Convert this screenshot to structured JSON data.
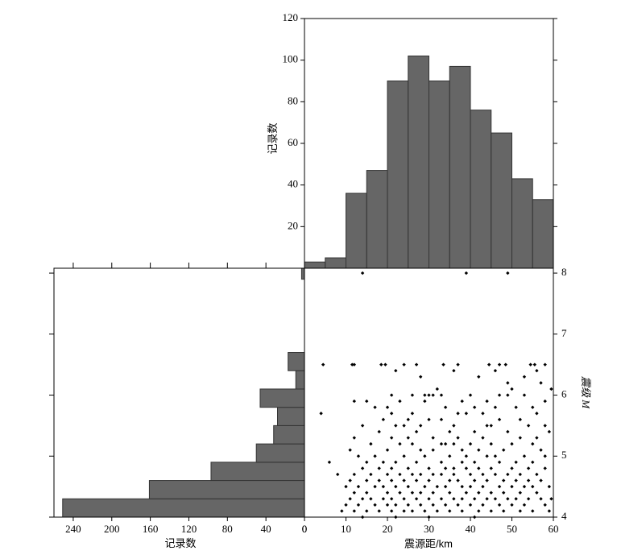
{
  "chart_data": [
    {
      "type": "histogram",
      "ylabel": "记录数",
      "bins": [
        0,
        5,
        10,
        15,
        20,
        25,
        30,
        35,
        40,
        45,
        50,
        55,
        60
      ],
      "counts": [
        3,
        5,
        36,
        47,
        90,
        102,
        90,
        97,
        76,
        65,
        43,
        33
      ],
      "color": "#666666",
      "xlim": [
        0,
        60
      ],
      "ylim": [
        0,
        120
      ],
      "yticks": [
        20,
        40,
        60,
        80,
        100,
        120
      ]
    },
    {
      "type": "histogram",
      "orientation": "horizontal",
      "x_inverted": true,
      "xlabel": "记录数",
      "bins": [
        4,
        4.3,
        4.6,
        4.9,
        5.2,
        5.5,
        5.8,
        6.1,
        6.4,
        6.7,
        7,
        7.3,
        7.6,
        7.9,
        8.2
      ],
      "counts": [
        251,
        161,
        97,
        50,
        32,
        28,
        46,
        9,
        17,
        0,
        0,
        0,
        0,
        3
      ],
      "color": "#666666",
      "xlim": [
        0,
        260
      ],
      "xticks": [
        240,
        200,
        160,
        120,
        80,
        40,
        0
      ],
      "ylim": [
        4,
        8.08
      ],
      "yticks": [
        4,
        5,
        6,
        7,
        8
      ]
    },
    {
      "type": "scatter",
      "xlabel": "震源距/km",
      "ylabel": "震级 M",
      "color": "#000000",
      "xlim": [
        0,
        60
      ],
      "ylim": [
        4,
        8.08
      ],
      "xticks": [
        0,
        10,
        20,
        30,
        40,
        50,
        60
      ],
      "yticks": [
        4,
        5,
        6,
        7,
        8
      ],
      "x": [
        14,
        39,
        49,
        4.5,
        11.5,
        12,
        18.5,
        19.5,
        24,
        27,
        33.5,
        37,
        44.5,
        47,
        48.5,
        54.5,
        55.5,
        58,
        22,
        36,
        46,
        56,
        28,
        42,
        53,
        49,
        57,
        32,
        50,
        59.5,
        21,
        26,
        29,
        30,
        31,
        33,
        40,
        47,
        49,
        53,
        12,
        15,
        23,
        29,
        38,
        44,
        58,
        17,
        20,
        34,
        41,
        46,
        51,
        55,
        4,
        21,
        26,
        37,
        39,
        43,
        56,
        19,
        25,
        30,
        33,
        47,
        52,
        14,
        22,
        24,
        28,
        36,
        44,
        45,
        54,
        58,
        18,
        27,
        35,
        41,
        49,
        59,
        12,
        21,
        25,
        31,
        37,
        43,
        52,
        56,
        16,
        23,
        26,
        33,
        34,
        36,
        40,
        45,
        50,
        55,
        11,
        20,
        28,
        31,
        38,
        42,
        48,
        57,
        13,
        17,
        24,
        29,
        35,
        39,
        44,
        46,
        53,
        58,
        6,
        15,
        19,
        22,
        27,
        33,
        38,
        41,
        47,
        51,
        55,
        14,
        18,
        21,
        25,
        30,
        34,
        36,
        39,
        42,
        45,
        50,
        54,
        58,
        8,
        12,
        16,
        20,
        23,
        26,
        28,
        31,
        33,
        36,
        40,
        43,
        46,
        49,
        52,
        56,
        11,
        15,
        18,
        21,
        24,
        27,
        30,
        35,
        37,
        41,
        44,
        48,
        51,
        54,
        57,
        10,
        13,
        17,
        19,
        22,
        25,
        29,
        32,
        34,
        38,
        40,
        43,
        47,
        50,
        53,
        55,
        59,
        12,
        15,
        20,
        23,
        26,
        28,
        31,
        35,
        39,
        42,
        45,
        48,
        52,
        56,
        11,
        14,
        16,
        19,
        21,
        24,
        27,
        30,
        33,
        36,
        38,
        41,
        44,
        46,
        49,
        51,
        54,
        57,
        59.5,
        10,
        13,
        17,
        20,
        22,
        25,
        28,
        31,
        34,
        37,
        40,
        43,
        47,
        50,
        53,
        58,
        9,
        12,
        15,
        18,
        21,
        24,
        26,
        29,
        32,
        35,
        38,
        42,
        45,
        48,
        52,
        55,
        59,
        14,
        22,
        30,
        41
      ],
      "y": [
        8,
        8,
        8,
        6.5,
        6.5,
        6.5,
        6.5,
        6.5,
        6.5,
        6.5,
        6.5,
        6.5,
        6.5,
        6.5,
        6.5,
        6.5,
        6.5,
        6.5,
        6.4,
        6.4,
        6.4,
        6.4,
        6.3,
        6.3,
        6.3,
        6.2,
        6.2,
        6.1,
        6.1,
        6.1,
        6,
        6,
        6,
        6,
        6,
        6,
        6,
        6,
        6,
        6,
        5.9,
        5.9,
        5.9,
        5.9,
        5.9,
        5.9,
        5.9,
        5.8,
        5.8,
        5.8,
        5.8,
        5.8,
        5.8,
        5.8,
        5.7,
        5.7,
        5.7,
        5.7,
        5.7,
        5.7,
        5.7,
        5.6,
        5.6,
        5.6,
        5.6,
        5.6,
        5.6,
        5.5,
        5.5,
        5.5,
        5.5,
        5.5,
        5.5,
        5.5,
        5.5,
        5.5,
        5.4,
        5.4,
        5.4,
        5.4,
        5.4,
        5.4,
        5.3,
        5.3,
        5.3,
        5.3,
        5.3,
        5.3,
        5.3,
        5.3,
        5.2,
        5.2,
        5.2,
        5.2,
        5.2,
        5.2,
        5.2,
        5.2,
        5.2,
        5.2,
        5.1,
        5.1,
        5.1,
        5.1,
        5.1,
        5.1,
        5.1,
        5.1,
        5,
        5,
        5,
        5,
        5,
        5,
        5,
        5,
        5,
        5,
        4.9,
        4.9,
        4.9,
        4.9,
        4.9,
        4.9,
        4.9,
        4.9,
        4.9,
        4.9,
        4.9,
        4.8,
        4.8,
        4.8,
        4.8,
        4.8,
        4.8,
        4.8,
        4.8,
        4.8,
        4.8,
        4.8,
        4.8,
        4.8,
        4.7,
        4.7,
        4.7,
        4.7,
        4.7,
        4.7,
        4.7,
        4.7,
        4.7,
        4.7,
        4.7,
        4.7,
        4.7,
        4.7,
        4.7,
        4.7,
        4.6,
        4.6,
        4.6,
        4.6,
        4.6,
        4.6,
        4.6,
        4.6,
        4.6,
        4.6,
        4.6,
        4.6,
        4.6,
        4.6,
        4.6,
        4.5,
        4.5,
        4.5,
        4.5,
        4.5,
        4.5,
        4.5,
        4.5,
        4.5,
        4.5,
        4.5,
        4.5,
        4.5,
        4.5,
        4.5,
        4.5,
        4.5,
        4.4,
        4.4,
        4.4,
        4.4,
        4.4,
        4.4,
        4.4,
        4.4,
        4.4,
        4.4,
        4.4,
        4.4,
        4.4,
        4.4,
        4.3,
        4.3,
        4.3,
        4.3,
        4.3,
        4.3,
        4.3,
        4.3,
        4.3,
        4.3,
        4.3,
        4.3,
        4.3,
        4.3,
        4.3,
        4.3,
        4.3,
        4.3,
        4.3,
        4.2,
        4.2,
        4.2,
        4.2,
        4.2,
        4.2,
        4.2,
        4.2,
        4.2,
        4.2,
        4.2,
        4.2,
        4.2,
        4.2,
        4.2,
        4.2,
        4.1,
        4.1,
        4.1,
        4.1,
        4.1,
        4.1,
        4.1,
        4.1,
        4.1,
        4.1,
        4.1,
        4.1,
        4.1,
        4.1,
        4.1,
        4.1,
        4.1,
        4,
        4,
        4,
        4
      ]
    }
  ]
}
